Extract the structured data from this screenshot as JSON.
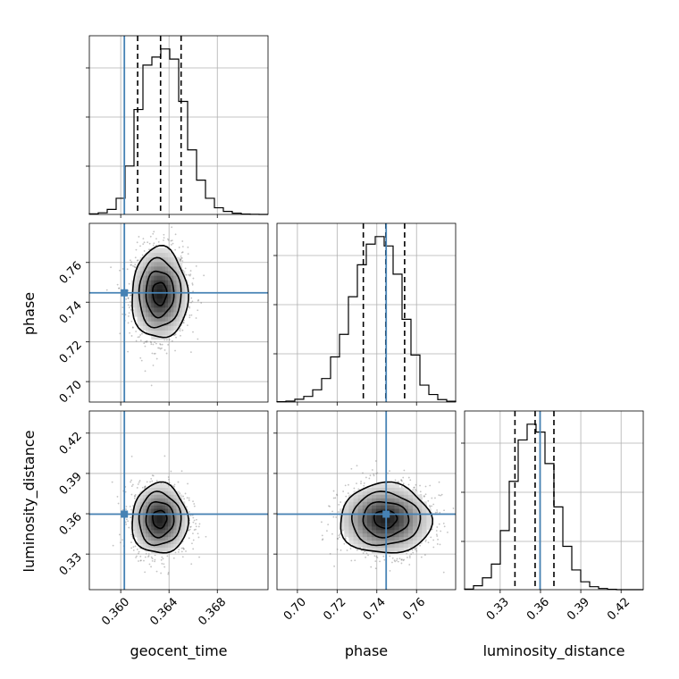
{
  "chart_data": {
    "type": "corner",
    "parameters": [
      "geocent_time",
      "phase",
      "luminosity_distance"
    ],
    "truths": {
      "geocent_time": 0.3603,
      "phase": 0.7447,
      "luminosity_distance": 0.3597
    },
    "truth_color": "#4682b4",
    "hist_color": "#000000",
    "grid": true,
    "ranges": {
      "geocent_time": [
        0.3574,
        0.3722
      ],
      "phase": [
        0.6897,
        0.7797
      ],
      "luminosity_distance": [
        0.3035,
        0.4365
      ]
    },
    "ticks": {
      "geocent_time": [
        0.36,
        0.364,
        0.368
      ],
      "phase": [
        0.7,
        0.72,
        0.74,
        0.76
      ],
      "luminosity_distance": [
        0.33,
        0.36,
        0.39,
        0.42
      ]
    },
    "tick_labels": {
      "geocent_time": [
        "0.360",
        "0.364",
        "0.368"
      ],
      "phase": [
        "0.70",
        "0.72",
        "0.74",
        "0.76"
      ],
      "luminosity_distance": [
        "0.33",
        "0.36",
        "0.39",
        "0.42"
      ]
    },
    "quantiles": {
      "geocent_time": [
        0.3614,
        0.3633,
        0.365
      ],
      "phase": [
        0.7332,
        0.7445,
        0.754
      ],
      "luminosity_distance": [
        0.341,
        0.356,
        0.37
      ]
    },
    "marginal_histograms": {
      "geocent_time": {
        "bin_edges": [
          0.3574,
          0.35814,
          0.35888,
          0.35962,
          0.36036,
          0.3611,
          0.36184,
          0.36258,
          0.36332,
          0.36406,
          0.3648,
          0.36554,
          0.36628,
          0.36702,
          0.36776,
          0.3685,
          0.36924,
          0.36998,
          0.37072,
          0.37146,
          0.3722
        ],
        "counts": [
          0.3,
          0.8,
          2.5,
          8,
          24,
          52,
          74,
          78,
          82,
          77,
          56,
          32,
          17,
          8,
          3.3,
          1.5,
          0.6,
          0.2,
          0.05,
          0
        ]
      },
      "phase": {
        "bin_edges": [
          0.6897,
          0.6942,
          0.6987,
          0.7032,
          0.7077,
          0.7122,
          0.7167,
          0.7212,
          0.7257,
          0.7302,
          0.7347,
          0.7392,
          0.7437,
          0.7482,
          0.7527,
          0.7572,
          0.7617,
          0.7662,
          0.7707,
          0.7752,
          0.7797
        ],
        "counts": [
          0.2,
          0.5,
          1.5,
          3,
          6.5,
          12.5,
          24,
          36,
          56,
          73,
          84,
          88,
          83,
          68,
          44,
          25,
          9,
          4,
          1.3,
          0.4
        ]
      },
      "luminosity_distance": {
        "bin_edges": [
          0.3035,
          0.31015,
          0.3168,
          0.32345,
          0.3301,
          0.33675,
          0.3434,
          0.35005,
          0.3567,
          0.36335,
          0.37,
          0.37665,
          0.3833,
          0.38995,
          0.3966,
          0.40325,
          0.4099,
          0.41655,
          0.4232,
          0.42985,
          0.4365
        ],
        "counts": [
          0.3,
          2,
          6,
          13,
          30,
          55,
          76,
          84,
          80,
          64,
          42,
          22,
          10,
          4,
          1.5,
          0.6,
          0.2,
          0,
          0,
          0
        ]
      }
    },
    "joint_posteriors": [
      {
        "x": "geocent_time",
        "y": "phase",
        "center": [
          0.36322,
          0.7443
        ],
        "sigma": [
          0.00116,
          0.0115
        ],
        "contour_levels": [
          0.5,
          1.0,
          1.5,
          2.0
        ],
        "truth": [
          0.3603,
          0.7447
        ]
      },
      {
        "x": "geocent_time",
        "y": "luminosity_distance",
        "center": [
          0.36322,
          0.356
        ],
        "sigma": [
          0.00116,
          0.0131
        ],
        "contour_levels": [
          0.5,
          1.0,
          1.5,
          2.0
        ],
        "truth": [
          0.3603,
          0.3597
        ]
      },
      {
        "x": "phase",
        "y": "luminosity_distance",
        "center": [
          0.7443,
          0.356
        ],
        "sigma": [
          0.0115,
          0.0131
        ],
        "contour_levels": [
          0.5,
          1.0,
          1.5,
          2.0
        ],
        "truth": [
          0.7447,
          0.3597
        ]
      }
    ],
    "xlabels": [
      "geocent_time",
      "phase",
      "luminosity_distance"
    ],
    "ylabels": [
      "",
      "phase",
      "luminosity_distance"
    ]
  }
}
